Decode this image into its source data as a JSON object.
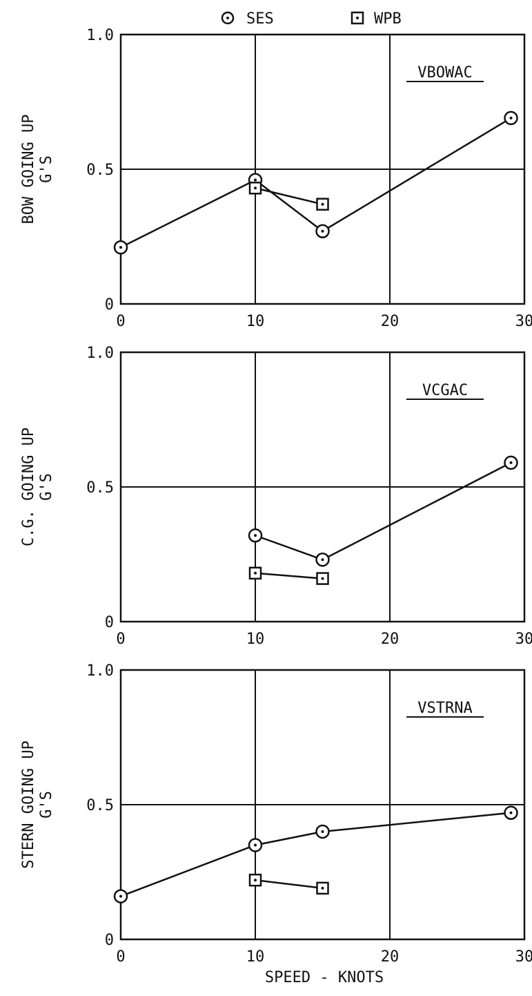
{
  "legend": {
    "ses_label": "SES",
    "wpb_label": "WPB"
  },
  "x_axis": {
    "label": "SPEED - KNOTS"
  },
  "colors": {
    "ink": "#111111",
    "background": "#ffffff"
  },
  "chart_data": [
    {
      "type": "line",
      "title": "VBOWAC",
      "ylabel_line1": "BOW GOING UP",
      "ylabel_line2": "G'S",
      "xlim": [
        0,
        30
      ],
      "ylim": [
        0,
        1.0
      ],
      "xticks": [
        "0",
        "10",
        "20",
        "30"
      ],
      "yticks": [
        "0",
        "0.5",
        "1.0"
      ],
      "grid": "x=10, x=20, y=0.5",
      "series": [
        {
          "name": "SES",
          "marker": "circle-dot",
          "x": [
            0,
            10,
            15,
            29
          ],
          "y": [
            0.21,
            0.46,
            0.27,
            0.69
          ]
        },
        {
          "name": "WPB",
          "marker": "square-dot",
          "x": [
            10,
            15
          ],
          "y": [
            0.43,
            0.37
          ]
        }
      ]
    },
    {
      "type": "line",
      "title": "VCGAC",
      "ylabel_line1": "C.G. GOING UP",
      "ylabel_line2": "G'S",
      "xlim": [
        0,
        30
      ],
      "ylim": [
        0,
        1.0
      ],
      "xticks": [
        "0",
        "10",
        "20",
        "30"
      ],
      "yticks": [
        "0",
        "0.5",
        "1.0"
      ],
      "grid": "x=10, x=20, y=0.5",
      "series": [
        {
          "name": "SES",
          "marker": "circle-dot",
          "x": [
            10,
            15,
            29
          ],
          "y": [
            0.32,
            0.23,
            0.59
          ]
        },
        {
          "name": "WPB",
          "marker": "square-dot",
          "x": [
            10,
            15
          ],
          "y": [
            0.18,
            0.16
          ]
        }
      ]
    },
    {
      "type": "line",
      "title": "VSTRNA",
      "ylabel_line1": "STERN GOING UP",
      "ylabel_line2": "G'S",
      "xlim": [
        0,
        30
      ],
      "ylim": [
        0,
        1.0
      ],
      "xticks": [
        "0",
        "10",
        "20",
        "30"
      ],
      "yticks": [
        "0",
        "0.5",
        "1.0"
      ],
      "grid": "x=10, x=20, y=0.5",
      "series": [
        {
          "name": "SES",
          "marker": "circle-dot",
          "x": [
            0,
            10,
            15,
            29
          ],
          "y": [
            0.16,
            0.35,
            0.4,
            0.47
          ]
        },
        {
          "name": "WPB",
          "marker": "square-dot",
          "x": [
            10,
            15
          ],
          "y": [
            0.22,
            0.19
          ]
        }
      ]
    }
  ]
}
